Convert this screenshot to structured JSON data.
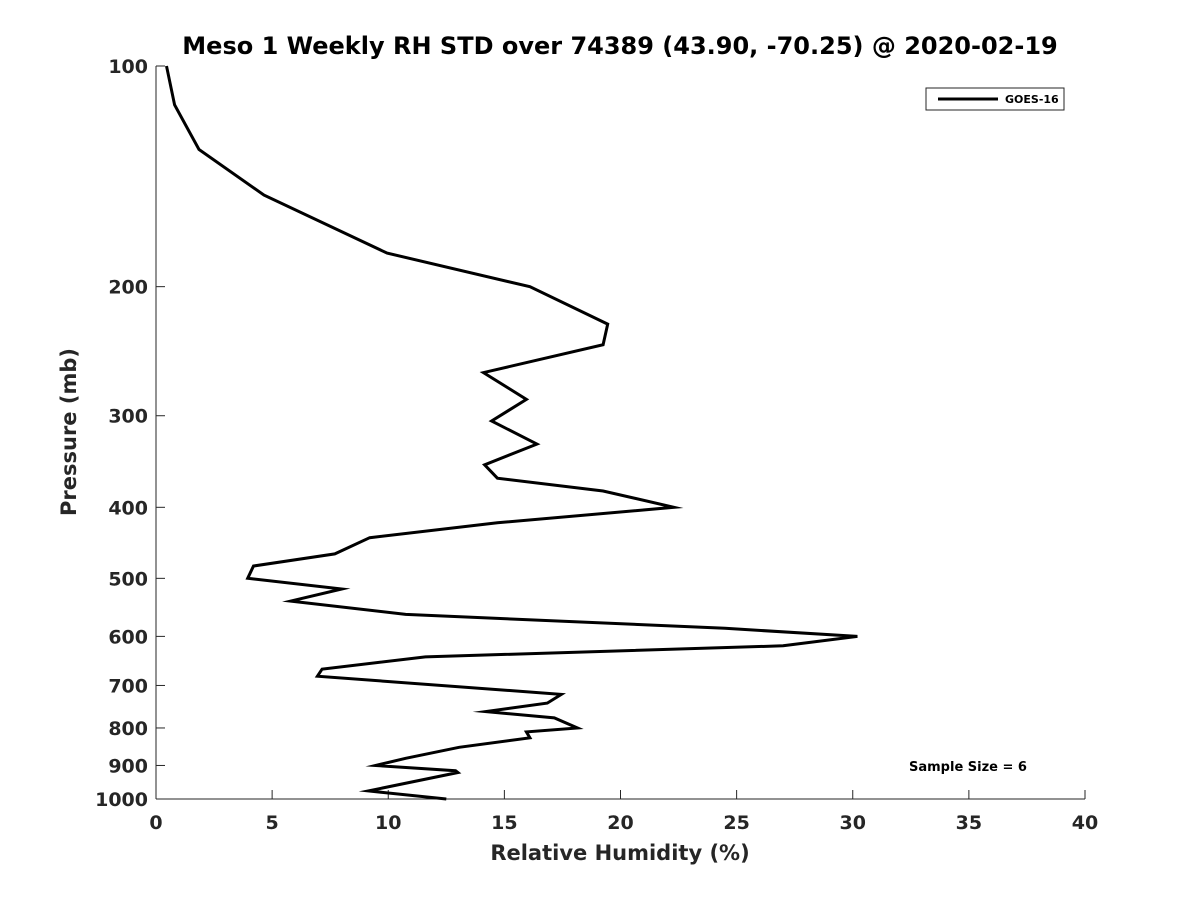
{
  "chart_data": {
    "type": "line",
    "title": "Meso 1 Weekly RH STD over 74389 (43.90, -70.25) @ 2020-02-19",
    "xlabel": "Relative Humidity (%)",
    "ylabel": "Pressure (mb)",
    "xlim": [
      0,
      40
    ],
    "ylim": [
      100,
      1000
    ],
    "y_scale": "log",
    "y_reversed": true,
    "x_ticks": [
      "0",
      "5",
      "10",
      "15",
      "20",
      "25",
      "30",
      "35",
      "40"
    ],
    "y_ticks": [
      "100",
      "200",
      "300",
      "400",
      "500",
      "600",
      "700",
      "800",
      "900",
      "1000"
    ],
    "grid": false,
    "legend_position": "top-right",
    "annotation": "Sample Size = 6",
    "series": [
      {
        "name": "GOES-16",
        "color": "#000000",
        "x": [
          0.45,
          0.8,
          1.85,
          4.65,
          9.95,
          16.1,
          19.45,
          19.25,
          14.1,
          15.95,
          14.45,
          16.4,
          14.15,
          14.7,
          19.25,
          22.3,
          14.7,
          9.2,
          7.7,
          4.2,
          3.95,
          8.0,
          5.8,
          10.75,
          24.5,
          30.2,
          27.0,
          11.6,
          7.15,
          6.95,
          17.45,
          16.85,
          14.2,
          17.15,
          18.15,
          15.95,
          16.1,
          13.05,
          10.75,
          9.45,
          12.9,
          13.0,
          9.15,
          12.5
        ],
        "y": [
          100,
          113,
          130,
          150,
          180,
          200,
          225,
          240,
          262,
          285,
          305,
          328,
          350,
          365,
          380,
          400,
          420,
          440,
          463,
          481,
          500,
          517,
          537,
          560,
          585,
          600,
          618,
          640,
          665,
          680,
          720,
          740,
          760,
          775,
          800,
          810,
          825,
          850,
          880,
          900,
          915,
          920,
          975,
          1000
        ]
      }
    ]
  }
}
